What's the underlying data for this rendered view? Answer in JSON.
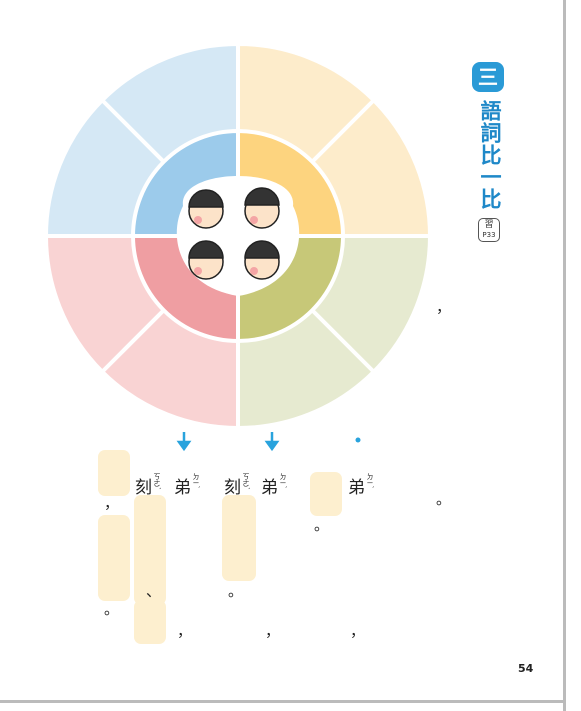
{
  "section": {
    "number": "三",
    "title": "語詞比一比",
    "ref_label": "習",
    "ref_page": "P33"
  },
  "page_number": "54",
  "characters": [
    {
      "char": "刻",
      "zhuyin": "ㄎㄜˋ"
    },
    {
      "char": "弟",
      "zhuyin": "ㄉㄧˋ"
    },
    {
      "char": "刻",
      "zhuyin": "ㄎㄜˋ"
    },
    {
      "char": "弟",
      "zhuyin": "ㄉㄧˋ"
    },
    {
      "char": "弟",
      "zhuyin": "ㄉㄧˋ"
    }
  ],
  "punctuation": [
    "，",
    "，",
    "。",
    "。",
    "、",
    "。",
    "。",
    "，",
    "，",
    "，"
  ]
}
